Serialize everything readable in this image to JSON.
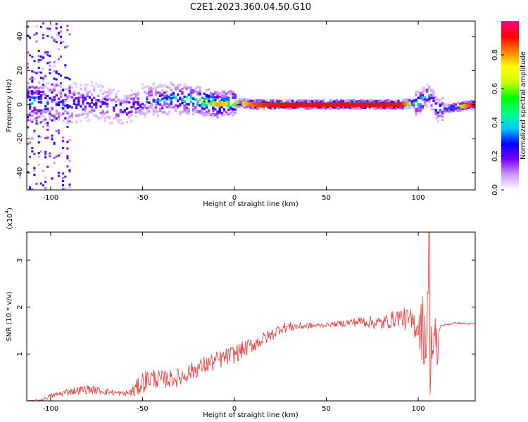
{
  "chart_data": [
    {
      "type": "heatmap",
      "title": "C2E1.2023.360.04.50.G10",
      "xlabel": "Height of straight line (km)",
      "ylabel": "Frequency (Hz)",
      "xlim": [
        -113,
        131
      ],
      "ylim": [
        -50,
        49
      ],
      "x_ticks": [
        -100,
        -50,
        0,
        50,
        100
      ],
      "y_ticks": [
        -40,
        -20,
        0,
        20,
        40
      ],
      "colorbar": {
        "label": "Normalized spectral amplitude",
        "range": [
          0,
          1
        ],
        "ticks": [
          0.0,
          0.2,
          0.4,
          0.6,
          0.8
        ],
        "colors": [
          "#ffffff",
          "#cc99ff",
          "#7a00ff",
          "#0000ff",
          "#00c8ff",
          "#00ff80",
          "#00ff00",
          "#c8ff00",
          "#ffff00",
          "#ff8000",
          "#ff0000",
          "#ff0080"
        ]
      },
      "ridge": [
        {
          "x": -110,
          "f": 2,
          "amp": 0.45
        },
        {
          "x": -100,
          "f": 1,
          "amp": 0.35
        },
        {
          "x": -90,
          "f": 0,
          "amp": 0.35
        },
        {
          "x": -80,
          "f": 2,
          "amp": 0.3
        },
        {
          "x": -70,
          "f": 0,
          "amp": 0.3
        },
        {
          "x": -60,
          "f": -3,
          "amp": 0.3
        },
        {
          "x": -50,
          "f": 2,
          "amp": 0.35
        },
        {
          "x": -45,
          "f": 3,
          "amp": 0.35
        },
        {
          "x": -40,
          "f": 2,
          "amp": 0.4
        },
        {
          "x": -35,
          "f": 4,
          "amp": 0.45
        },
        {
          "x": -30,
          "f": 3,
          "amp": 0.5
        },
        {
          "x": -25,
          "f": 3,
          "amp": 0.55
        },
        {
          "x": -20,
          "f": 2,
          "amp": 0.6
        },
        {
          "x": -10,
          "f": 0,
          "amp": 0.8
        },
        {
          "x": 0,
          "f": 1,
          "amp": 0.7
        },
        {
          "x": 10,
          "f": 0,
          "amp": 0.85
        },
        {
          "x": 20,
          "f": 0,
          "amp": 0.9
        },
        {
          "x": 50,
          "f": 0,
          "amp": 0.92
        },
        {
          "x": 90,
          "f": 0,
          "amp": 0.9
        },
        {
          "x": 100,
          "f": 1,
          "amp": 0.6
        },
        {
          "x": 105,
          "f": 6,
          "amp": 0.4
        },
        {
          "x": 110,
          "f": -3,
          "amp": 0.45
        },
        {
          "x": 131,
          "f": 0,
          "amp": 0.95
        }
      ]
    },
    {
      "type": "line",
      "xlabel": "Height of straight line (km)",
      "ylabel": "SNR (10 * v/v)",
      "y_multiplier": "(x10",
      "y_multiplier_exp": "4",
      "xlim": [
        -113,
        131
      ],
      "ylim": [
        0,
        3.6
      ],
      "x_ticks": [
        -100,
        -50,
        0,
        50,
        100
      ],
      "y_ticks": [
        1,
        2,
        3
      ],
      "series": [
        {
          "color": "#ee3333",
          "trend": [
            {
              "x": -113,
              "y": 0.0
            },
            {
              "x": -105,
              "y": 0.02
            },
            {
              "x": -100,
              "y": 0.1
            },
            {
              "x": -90,
              "y": 0.2
            },
            {
              "x": -80,
              "y": 0.25
            },
            {
              "x": -70,
              "y": 0.2
            },
            {
              "x": -60,
              "y": 0.15
            },
            {
              "x": -55,
              "y": 0.2
            },
            {
              "x": -50,
              "y": 0.4
            },
            {
              "x": -45,
              "y": 0.5
            },
            {
              "x": -40,
              "y": 0.45
            },
            {
              "x": -30,
              "y": 0.5
            },
            {
              "x": -20,
              "y": 0.7
            },
            {
              "x": -10,
              "y": 0.85
            },
            {
              "x": 0,
              "y": 1.0
            },
            {
              "x": 10,
              "y": 1.2
            },
            {
              "x": 20,
              "y": 1.4
            },
            {
              "x": 25,
              "y": 1.55
            },
            {
              "x": 30,
              "y": 1.58
            },
            {
              "x": 50,
              "y": 1.62
            },
            {
              "x": 70,
              "y": 1.7
            },
            {
              "x": 80,
              "y": 1.65
            },
            {
              "x": 90,
              "y": 1.8
            },
            {
              "x": 95,
              "y": 1.7
            },
            {
              "x": 100,
              "y": 1.6
            },
            {
              "x": 105,
              "y": 1.5
            },
            {
              "x": 110,
              "y": 0.9
            },
            {
              "x": 112,
              "y": 1.6
            },
            {
              "x": 120,
              "y": 1.66
            },
            {
              "x": 131,
              "y": 1.64
            }
          ],
          "noise_amplitude": [
            {
              "x": -113,
              "a": 0.0
            },
            {
              "x": -100,
              "a": 0.05
            },
            {
              "x": -80,
              "a": 0.1
            },
            {
              "x": -60,
              "a": 0.05
            },
            {
              "x": -50,
              "a": 0.25
            },
            {
              "x": -40,
              "a": 0.2
            },
            {
              "x": -25,
              "a": 0.2
            },
            {
              "x": 0,
              "a": 0.2
            },
            {
              "x": 25,
              "a": 0.12
            },
            {
              "x": 50,
              "a": 0.04
            },
            {
              "x": 70,
              "a": 0.12
            },
            {
              "x": 90,
              "a": 0.2
            },
            {
              "x": 100,
              "a": 0.35
            },
            {
              "x": 103,
              "a": 0.9
            },
            {
              "x": 106,
              "a": 1.4
            },
            {
              "x": 110,
              "a": 0.8
            },
            {
              "x": 112,
              "a": 0.02
            },
            {
              "x": 131,
              "a": 0.02
            }
          ],
          "peak": {
            "x": 106,
            "y": 3.6
          }
        }
      ]
    }
  ]
}
